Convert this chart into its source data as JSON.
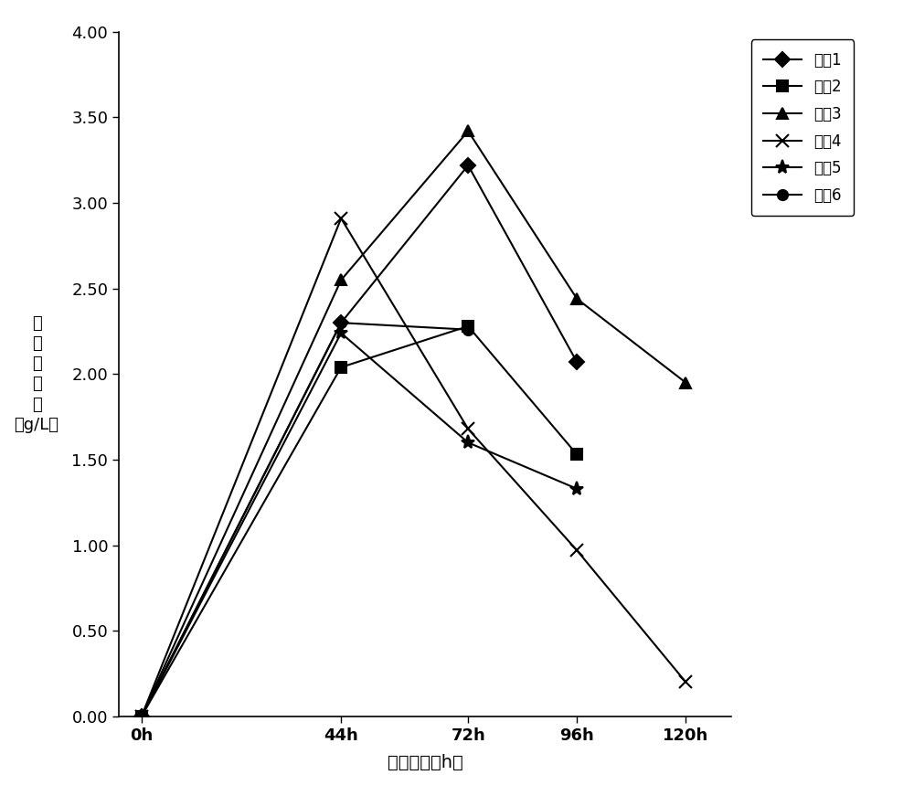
{
  "x_values": [
    0,
    44,
    72,
    96,
    120
  ],
  "x_labels": [
    "0h",
    "44h",
    "72h",
    "96h",
    "120h"
  ],
  "series": [
    {
      "name": "实奡1",
      "values": [
        0.0,
        2.3,
        3.22,
        2.07,
        null
      ],
      "marker": "D",
      "markersize": 8
    },
    {
      "name": "实奡2",
      "values": [
        0.0,
        2.04,
        2.28,
        1.53,
        null
      ],
      "marker": "s",
      "markersize": 8
    },
    {
      "name": "实奡3",
      "values": [
        0.0,
        2.55,
        3.42,
        2.44,
        1.95
      ],
      "marker": "^",
      "markersize": 9
    },
    {
      "name": "实奡4",
      "values": [
        0.0,
        2.91,
        1.68,
        0.97,
        0.2
      ],
      "marker": "x",
      "markersize": 10
    },
    {
      "name": "实奡5",
      "values": [
        0.0,
        2.24,
        1.6,
        1.33,
        null
      ],
      "marker": "*",
      "markersize": 11
    },
    {
      "name": "实奡6",
      "values": [
        0.0,
        2.3,
        2.26,
        null,
        null
      ],
      "marker": "o",
      "markersize": 8
    }
  ],
  "line_color": "#000000",
  "line_width": 1.5,
  "xlabel": "培养时间（h）",
  "ylabel_chars": [
    "葡",
    "萄",
    "糖",
    "消",
    "耗"
  ],
  "ylabel_unit": "（g/L）",
  "ylim": [
    0.0,
    4.0
  ],
  "yticks": [
    0.0,
    0.5,
    1.0,
    1.5,
    2.0,
    2.5,
    3.0,
    3.5,
    4.0
  ],
  "background_color": "#ffffff",
  "tick_fontsize": 13,
  "xlabel_fontsize": 14,
  "ylabel_fontsize": 13,
  "legend_fontsize": 12
}
